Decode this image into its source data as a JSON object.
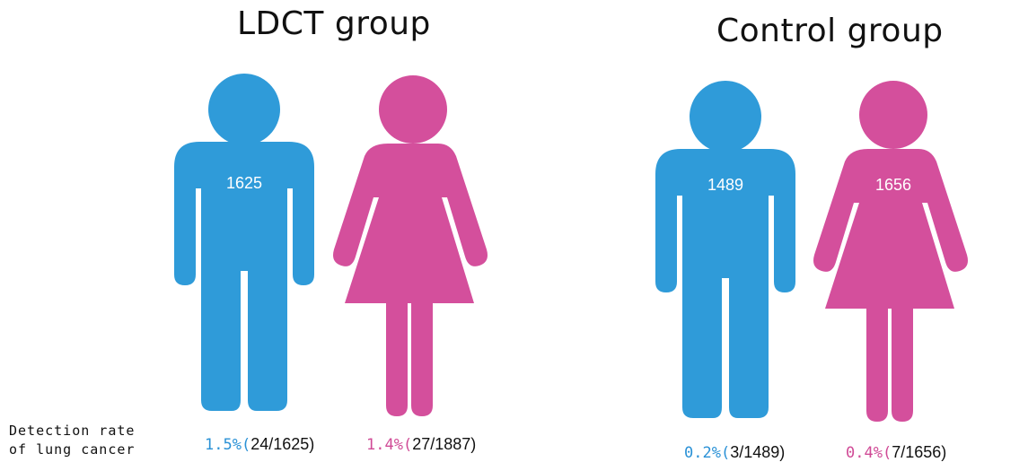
{
  "groups": {
    "ldct": {
      "title": "LDCT group",
      "male": {
        "count": "1625",
        "rate_pct": "1.5%(",
        "rate_frac": "24/1625)"
      },
      "female": {
        "count": "",
        "rate_pct": "1.4%(",
        "rate_frac": "27/1887)"
      }
    },
    "control": {
      "title": "Control group",
      "male": {
        "count": "1489",
        "rate_pct": "0.2%(",
        "rate_frac": "3/1489)"
      },
      "female": {
        "count": "1656",
        "rate_pct": "0.4%(",
        "rate_frac": "7/1656)"
      }
    }
  },
  "row_label": {
    "line1": "Detection rate",
    "line2": "of lung cancer"
  },
  "colors": {
    "male": "#2f9bd9",
    "female": "#d44f9c",
    "text": "#111111"
  },
  "icons": {
    "male": "male-figure-icon",
    "female": "female-figure-icon"
  }
}
